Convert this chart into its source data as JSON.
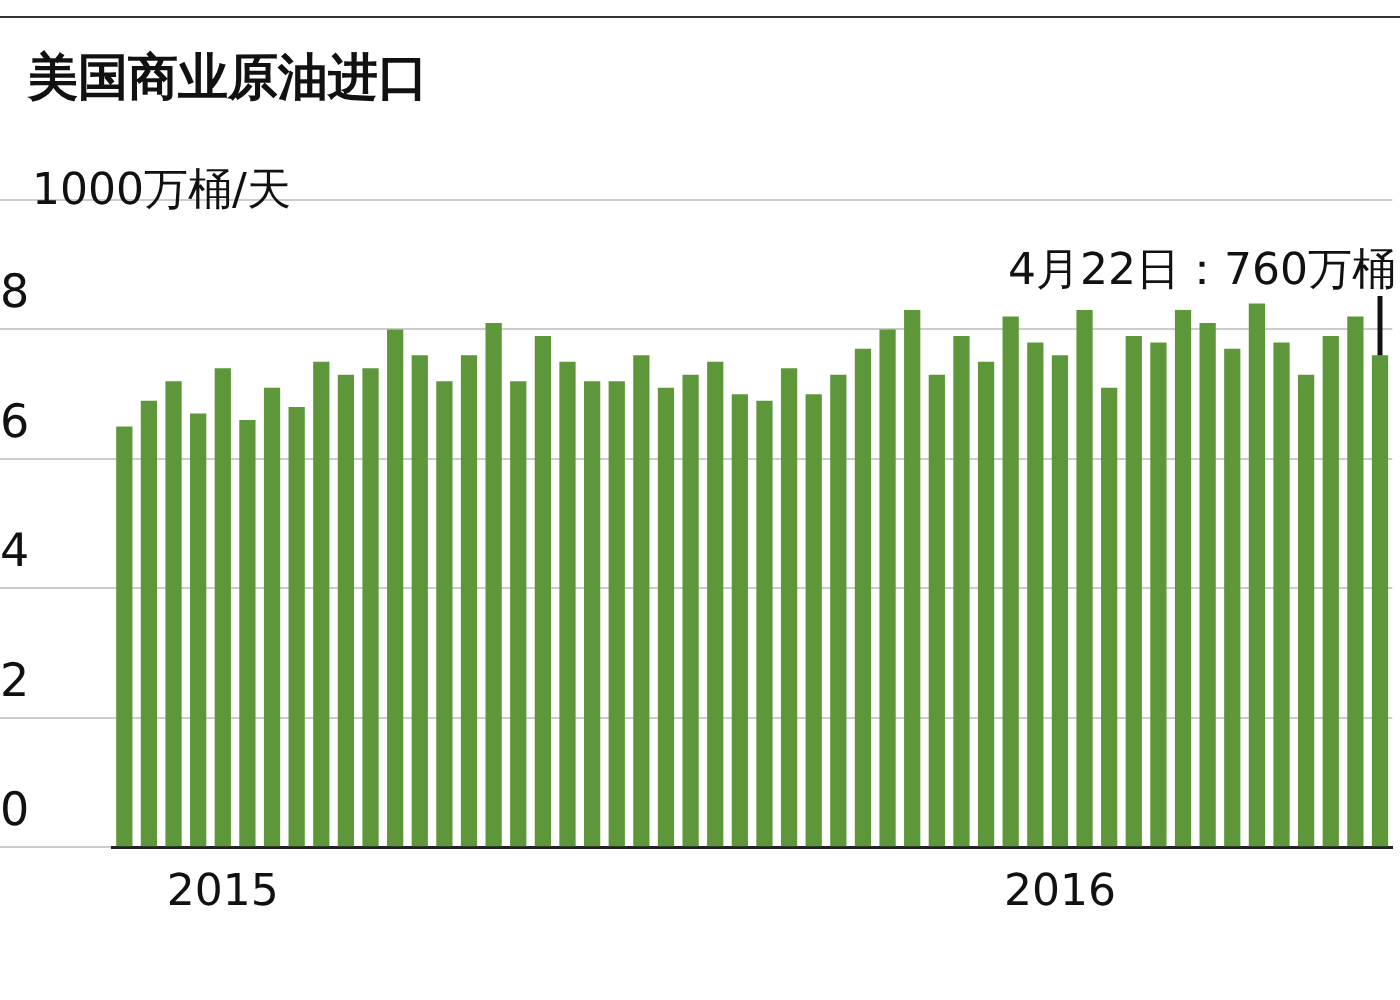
{
  "chart_data": {
    "type": "bar",
    "title": "美国商业原油进口",
    "ylabel": "1000万桶/天",
    "categories": [
      null,
      null,
      null,
      null,
      "2015",
      null,
      null,
      null,
      null,
      null,
      null,
      null,
      null,
      null,
      null,
      null,
      null,
      null,
      null,
      null,
      null,
      null,
      null,
      null,
      null,
      null,
      null,
      null,
      null,
      null,
      null,
      null,
      null,
      null,
      null,
      null,
      null,
      null,
      "2016",
      null,
      null,
      null,
      null,
      null,
      null,
      null,
      null,
      null,
      null,
      null,
      null,
      null
    ],
    "values": [
      6.5,
      6.9,
      7.2,
      6.7,
      7.4,
      6.6,
      7.1,
      6.8,
      7.5,
      7.3,
      7.4,
      8.0,
      7.6,
      7.2,
      7.6,
      8.1,
      7.2,
      7.9,
      7.5,
      7.2,
      7.2,
      7.6,
      7.1,
      7.3,
      7.5,
      7.0,
      6.9,
      7.4,
      7.0,
      7.3,
      7.7,
      8.0,
      8.3,
      7.3,
      7.9,
      7.5,
      8.2,
      7.8,
      7.6,
      8.3,
      7.1,
      7.9,
      7.8,
      8.3,
      8.1,
      7.7,
      8.4,
      7.8,
      7.3,
      7.9,
      8.2,
      7.6
    ],
    "color": "#5e973a",
    "ylim": [
      0,
      10
    ],
    "yticks": [
      0,
      2,
      4,
      6,
      8,
      {
        "value": 10,
        "label": null
      }
    ],
    "grid": "y",
    "annotations": [
      {
        "text": "4月22日：760万桶",
        "y": 7.6
      }
    ]
  }
}
